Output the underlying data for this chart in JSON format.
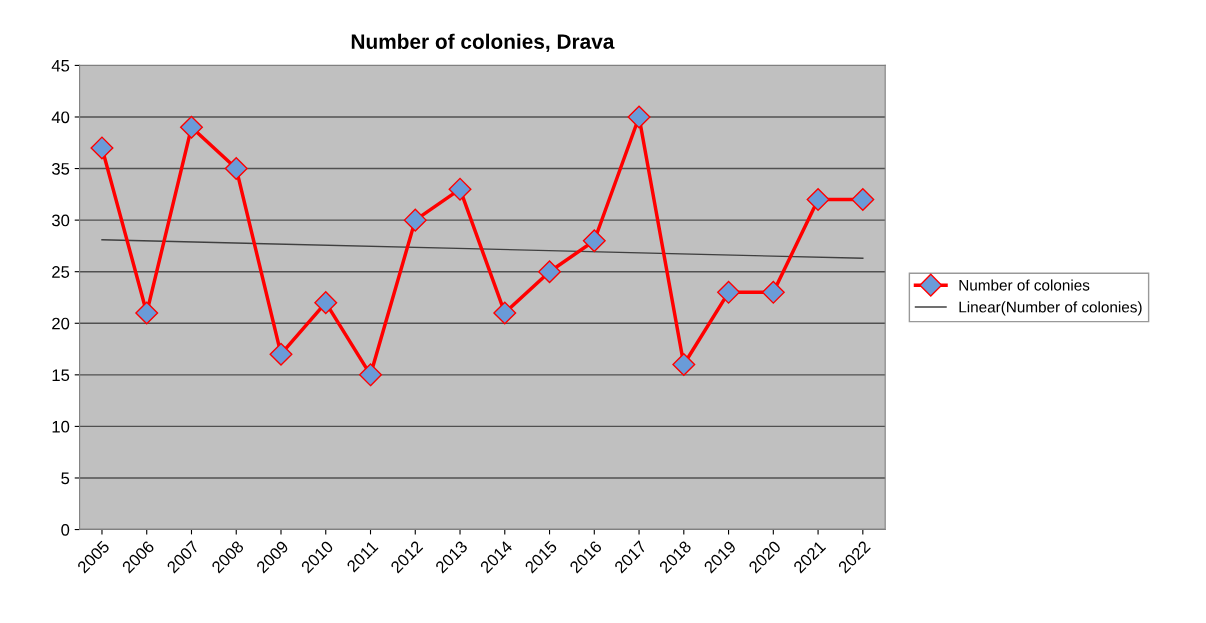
{
  "chart_data": {
    "type": "line",
    "title": "Number of colonies, Drava",
    "categories": [
      "2005",
      "2006",
      "2007",
      "2008",
      "2009",
      "2010",
      "2011",
      "2012",
      "2013",
      "2014",
      "2015",
      "2016",
      "2017",
      "2018",
      "2019",
      "2020",
      "2021",
      "2022"
    ],
    "series": [
      {
        "name": "Number of colonies",
        "color": "#ff0000",
        "marker": "diamond",
        "values": [
          37,
          21,
          39,
          35,
          17,
          22,
          15,
          30,
          33,
          21,
          25,
          28,
          40,
          16,
          23,
          23,
          32,
          32
        ]
      },
      {
        "name": "Linear(Number of colonies)",
        "color": "#404040",
        "marker": "none",
        "values": [
          28.1,
          null,
          null,
          null,
          null,
          null,
          null,
          null,
          null,
          null,
          null,
          null,
          null,
          null,
          null,
          null,
          null,
          26.3
        ]
      }
    ],
    "ylim": [
      0,
      45
    ],
    "yticks": [
      0,
      5,
      10,
      15,
      20,
      25,
      30,
      35,
      40,
      45
    ],
    "grid": "y",
    "legend": "right"
  }
}
